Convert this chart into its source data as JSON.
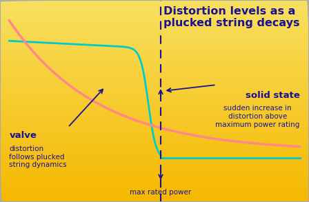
{
  "title": "Distortion levels as a\nplucked string decays",
  "title_color": "#1a1090",
  "title_fontsize": 11.5,
  "valve_label": "valve",
  "valve_sublabel": "distortion\nfollows plucked\nstring dynamics",
  "solid_state_label": "solid state",
  "solid_state_sublabel": "sudden increase in\ndistortion above\nmaximum power rating",
  "max_power_label": "max rated power",
  "dashed_line_color": "#1a1090",
  "cyan_color": "#00cccc",
  "pink_color": "#ff8888",
  "label_color": "#1a1090",
  "annotation_color": "#1a1090",
  "vline_x": 0.52,
  "xlim": [
    0,
    1
  ],
  "ylim": [
    0,
    1
  ]
}
